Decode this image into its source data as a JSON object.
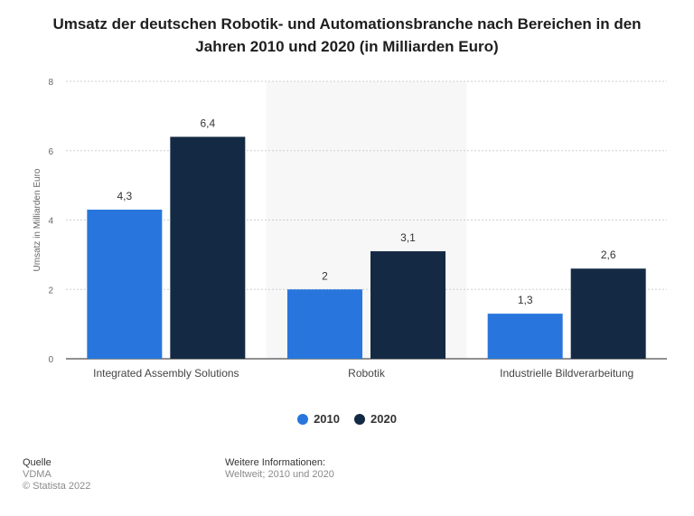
{
  "chart_data": {
    "type": "bar",
    "title": "Umsatz der deutschen Robotik- und Automationsbranche nach Bereichen in den Jahren 2010 und 2020 (in Milliarden Euro)",
    "title_line1": "Umsatz der deutschen Robotik- und Automationsbranche nach Bereichen in den",
    "title_line2": "Jahren 2010 und 2020 (in Milliarden Euro)",
    "categories": [
      "Integrated Assembly Solutions",
      "Robotik",
      "Industrielle Bildverarbeitung"
    ],
    "series": [
      {
        "name": "2010",
        "values": [
          4.3,
          2,
          1.3
        ],
        "labels": [
          "4,3",
          "2",
          "1,3"
        ],
        "color": "#2876dd"
      },
      {
        "name": "2020",
        "values": [
          6.4,
          3.1,
          2.6
        ],
        "labels": [
          "6,4",
          "3,1",
          "2,6"
        ],
        "color": "#142a44"
      }
    ],
    "xlabel": "",
    "ylabel": "Umsatz in Milliarden Euro",
    "ylim": [
      0,
      8
    ],
    "yticks": [
      0,
      2,
      4,
      6,
      8
    ],
    "grid": true,
    "legend": "bottom-center"
  },
  "footer": {
    "source_heading": "Quelle",
    "source": "VDMA",
    "copyright": "© Statista 2022",
    "info_heading": "Weitere Informationen:",
    "info": "Weltweit; 2010 und 2020"
  }
}
